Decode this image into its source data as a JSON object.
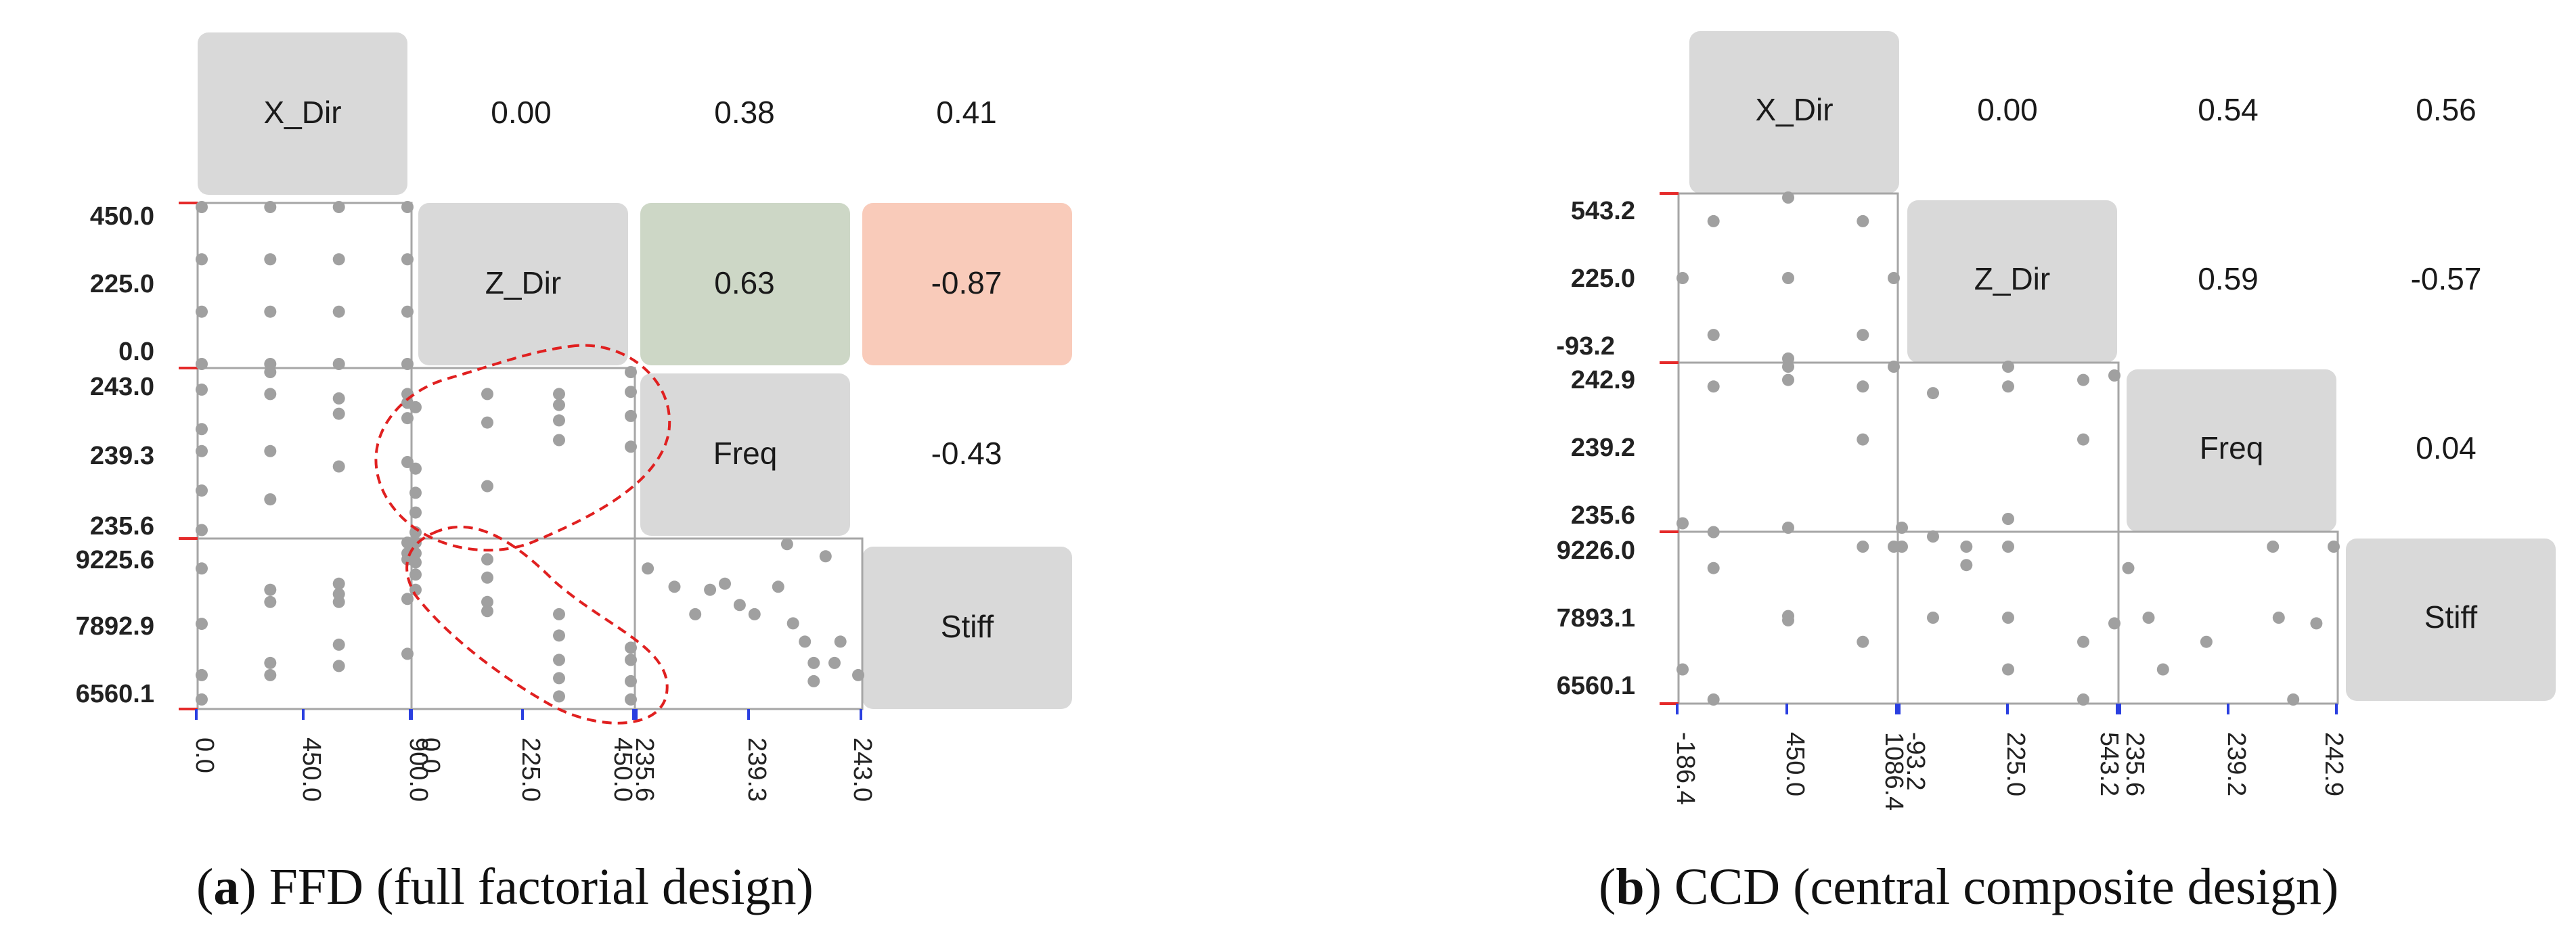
{
  "chart_data": [
    {
      "type": "scatter-matrix",
      "panel_id": "a",
      "caption_letter": "a",
      "caption_text": ") FFD (full factorial design)",
      "variables": [
        "X_Dir",
        "Z_Dir",
        "Freq",
        "Stiff"
      ],
      "axis_ticks": [
        [
          "0.0",
          "450.0",
          "900.0"
        ],
        [
          "0.0",
          "225.0",
          "450.0"
        ],
        [
          "235.6",
          "239.3",
          "243.0"
        ],
        [
          "6560.1",
          "7892.9",
          "9225.6"
        ]
      ],
      "correlations": [
        {
          "row": 0,
          "col": 1,
          "text": "0.00",
          "fill": ""
        },
        {
          "row": 0,
          "col": 2,
          "text": "0.38",
          "fill": ""
        },
        {
          "row": 0,
          "col": 3,
          "text": "0.41",
          "fill": ""
        },
        {
          "row": 1,
          "col": 2,
          "text": "0.63",
          "fill": "#cdd7c6"
        },
        {
          "row": 1,
          "col": 3,
          "text": "-0.87",
          "fill": "#f9cbba"
        },
        {
          "row": 2,
          "col": 3,
          "text": "-0.43",
          "fill": ""
        }
      ],
      "scatter": {
        "1_0": [
          [
            0,
            450
          ],
          [
            300,
            450
          ],
          [
            600,
            450
          ],
          [
            900,
            450
          ],
          [
            0,
            300
          ],
          [
            300,
            300
          ],
          [
            600,
            300
          ],
          [
            900,
            300
          ],
          [
            0,
            150
          ],
          [
            300,
            150
          ],
          [
            600,
            150
          ],
          [
            900,
            150
          ],
          [
            0,
            0
          ],
          [
            300,
            0
          ],
          [
            600,
            0
          ],
          [
            900,
            0
          ]
        ],
        "2_0": [
          [
            0,
            242.2
          ],
          [
            0,
            240.4
          ],
          [
            0,
            239.4
          ],
          [
            0,
            237.6
          ],
          [
            0,
            235.8
          ],
          [
            300,
            243.0
          ],
          [
            300,
            242.0
          ],
          [
            300,
            239.4
          ],
          [
            300,
            237.2
          ],
          [
            600,
            241.8
          ],
          [
            600,
            241.1
          ],
          [
            600,
            238.7
          ],
          [
            900,
            242.0
          ],
          [
            900,
            241.6
          ],
          [
            900,
            240.9
          ],
          [
            900,
            238.9
          ]
        ],
        "2_1": [
          [
            0,
            241.4
          ],
          [
            0,
            238.6
          ],
          [
            0,
            237.5
          ],
          [
            0,
            236.6
          ],
          [
            0,
            235.7
          ],
          [
            150,
            242.0
          ],
          [
            150,
            240.7
          ],
          [
            150,
            237.8
          ],
          [
            300,
            242.0
          ],
          [
            300,
            240.8
          ],
          [
            300,
            239.9
          ],
          [
            450,
            243.0
          ],
          [
            450,
            242.1
          ],
          [
            450,
            241.0
          ],
          [
            450,
            239.6
          ],
          [
            300,
            241.5
          ]
        ],
        "3_0": [
          [
            0,
            8800
          ],
          [
            0,
            7892
          ],
          [
            0,
            7050
          ],
          [
            0,
            6650
          ],
          [
            300,
            8450
          ],
          [
            300,
            8250
          ],
          [
            300,
            7250
          ],
          [
            300,
            7050
          ],
          [
            600,
            8550
          ],
          [
            600,
            8380
          ],
          [
            600,
            8250
          ],
          [
            600,
            7550
          ],
          [
            600,
            7200
          ],
          [
            900,
            9225
          ],
          [
            900,
            9050
          ],
          [
            900,
            8950
          ],
          [
            900,
            8300
          ],
          [
            900,
            7400
          ]
        ],
        "3_1": [
          [
            0,
            9225
          ],
          [
            0,
            9050
          ],
          [
            0,
            8900
          ],
          [
            0,
            8700
          ],
          [
            0,
            8450
          ],
          [
            150,
            8950
          ],
          [
            150,
            8650
          ],
          [
            150,
            8250
          ],
          [
            150,
            8100
          ],
          [
            300,
            8050
          ],
          [
            300,
            7700
          ],
          [
            300,
            7300
          ],
          [
            300,
            7000
          ],
          [
            300,
            6700
          ],
          [
            450,
            7500
          ],
          [
            450,
            7300
          ],
          [
            450,
            6950
          ],
          [
            450,
            6650
          ]
        ],
        "3_2": [
          [
            235.9,
            8800
          ],
          [
            236.8,
            8500
          ],
          [
            237.5,
            8050
          ],
          [
            238.0,
            8450
          ],
          [
            238.5,
            8550
          ],
          [
            239.0,
            8200
          ],
          [
            239.5,
            8050
          ],
          [
            240.3,
            8500
          ],
          [
            240.6,
            9200
          ],
          [
            240.8,
            7900
          ],
          [
            241.2,
            7600
          ],
          [
            241.5,
            7250
          ],
          [
            241.5,
            6950
          ],
          [
            241.9,
            9000
          ],
          [
            242.2,
            7250
          ],
          [
            242.4,
            7600
          ],
          [
            243.0,
            7050
          ]
        ]
      }
    },
    {
      "type": "scatter-matrix",
      "panel_id": "b",
      "caption_letter": "b",
      "caption_text": ") CCD (central composite design)",
      "variables": [
        "X_Dir",
        "Z_Dir",
        "Freq",
        "Stiff"
      ],
      "axis_ticks": [
        [
          "-186.4",
          "450.0",
          "1086.4"
        ],
        [
          "-93.2",
          "225.0",
          "543.2"
        ],
        [
          "235.6",
          "239.2",
          "242.9"
        ],
        [
          "6560.1",
          "7893.1",
          "9226.0"
        ]
      ],
      "correlations": [
        {
          "row": 0,
          "col": 1,
          "text": "0.00",
          "fill": ""
        },
        {
          "row": 0,
          "col": 2,
          "text": "0.54",
          "fill": ""
        },
        {
          "row": 0,
          "col": 3,
          "text": "0.56",
          "fill": ""
        },
        {
          "row": 1,
          "col": 2,
          "text": "0.59",
          "fill": ""
        },
        {
          "row": 1,
          "col": 3,
          "text": "-0.57",
          "fill": ""
        },
        {
          "row": 2,
          "col": 3,
          "text": "0.04",
          "fill": ""
        }
      ],
      "scatter": {
        "1_0": [
          [
            -186.4,
            225
          ],
          [
            0,
            450
          ],
          [
            0,
            0
          ],
          [
            450,
            543.2
          ],
          [
            450,
            225
          ],
          [
            450,
            -93.2
          ],
          [
            900,
            450
          ],
          [
            900,
            0
          ],
          [
            1086.4,
            225
          ]
        ],
        "2_0": [
          [
            -186.4,
            235.8
          ],
          [
            0,
            242.0
          ],
          [
            0,
            235.4
          ],
          [
            450,
            242.9
          ],
          [
            450,
            242.3
          ],
          [
            450,
            235.6
          ],
          [
            900,
            242.0
          ],
          [
            900,
            239.6
          ],
          [
            1086.4,
            242.9
          ]
        ],
        "2_1": [
          [
            -93.2,
            235.6
          ],
          [
            0,
            235.2
          ],
          [
            0,
            241.7
          ],
          [
            225,
            242.9
          ],
          [
            225,
            242.0
          ],
          [
            225,
            236.0
          ],
          [
            450,
            242.3
          ],
          [
            450,
            239.6
          ],
          [
            543.2,
            242.5
          ]
        ],
        "3_0": [
          [
            -186.4,
            7050
          ],
          [
            0,
            8700
          ],
          [
            0,
            6560
          ],
          [
            450,
            7920
          ],
          [
            450,
            7850
          ],
          [
            900,
            9050
          ],
          [
            900,
            7500
          ],
          [
            1086.4,
            9050
          ]
        ],
        "3_1": [
          [
            -93.2,
            9050
          ],
          [
            0,
            7893
          ],
          [
            100,
            9050
          ],
          [
            100,
            8750
          ],
          [
            225,
            9050
          ],
          [
            225,
            7893
          ],
          [
            225,
            7050
          ],
          [
            450,
            7500
          ],
          [
            450,
            6560
          ],
          [
            543.2,
            7800
          ]
        ],
        "3_2": [
          [
            235.8,
            8700
          ],
          [
            236.5,
            7893
          ],
          [
            237.0,
            7050
          ],
          [
            238.5,
            7500
          ],
          [
            240.8,
            9050
          ],
          [
            241.0,
            7893
          ],
          [
            241.5,
            6560
          ],
          [
            242.3,
            7800
          ],
          [
            242.9,
            9050
          ]
        ]
      }
    }
  ]
}
